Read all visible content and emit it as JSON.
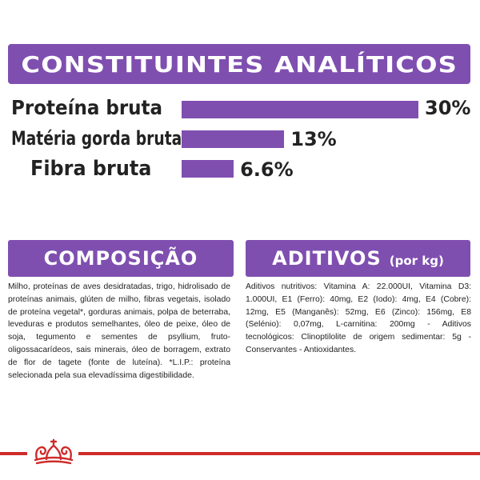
{
  "colors": {
    "accent": "#7f4fb0",
    "brand_red": "#cf2b2b",
    "text": "#222222"
  },
  "analytic": {
    "title": "CONSTITUINTES ANALÍTICOS",
    "items": [
      {
        "label": "Proteína bruta",
        "value": 30,
        "value_text": "30%"
      },
      {
        "label": "Matéria gorda bruta",
        "value": 13,
        "value_text": "13%"
      },
      {
        "label": "Fibra bruta",
        "value": 6.6,
        "value_text": "6.6%"
      }
    ]
  },
  "composition": {
    "title": "COMPOSIÇÃO",
    "text": "Milho, proteínas de aves desidratadas, trigo, hidrolisado de proteínas animais, glúten de milho, fibras vegetais, isolado de proteína vegetal*, gorduras animais, polpa de beterraba, leveduras e produtos semelhantes, óleo de peixe, óleo de soja, tegumento e sementes de psyllium, fruto-oligossacarídeos, sais minerais, óleo de borragem, extrato de flor de tagete (fonte de luteína). *L.I.P.: proteína selecionada pela sua elevadíssima digestibilidade."
  },
  "additives": {
    "title": "ADITIVOS",
    "unit": "(por kg)",
    "text": "Aditivos nutritivos: Vitamina A: 22.000UI, Vitamina D3: 1.000UI, E1 (Ferro): 40mg, E2 (Iodo): 4mg, E4 (Cobre): 12mg, E5 (Manganês): 52mg, E6 (Zinco): 156mg, E8 (Selénio): 0,07mg, L-carnitina: 200mg - Aditivos tecnológicos: Clinoptilolite de origem sedimentar: 5g - Conservantes - Antioxidantes."
  },
  "footer": {
    "logo_icon": "crown-icon"
  }
}
